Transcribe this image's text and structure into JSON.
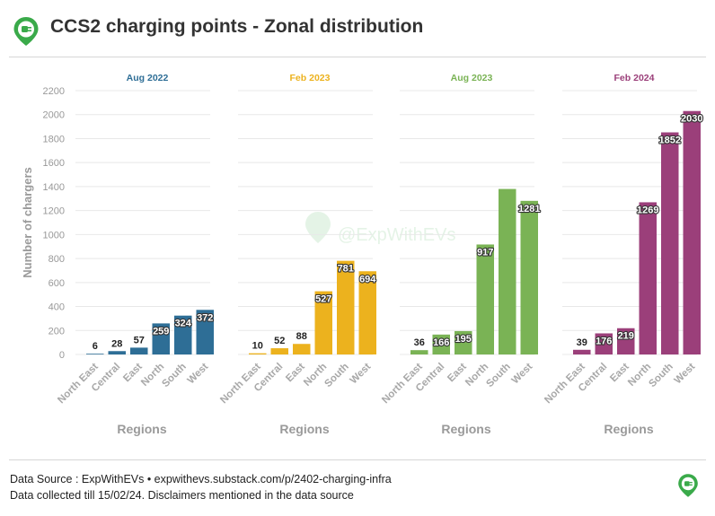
{
  "title": "CCS2 charging points - Zonal distribution",
  "watermark": "@ExpWithEVs",
  "footer": {
    "line1": "Data Source : ExpWithEVs • expwithevs.substack.com/p/2402-charging-infra",
    "line2": "Data collected till 15/02/24. Disclaimers mentioned in the data source"
  },
  "chart_data": {
    "type": "bar",
    "ylabel": "Number of chargers",
    "xlabel": "Regions",
    "ylim": [
      0,
      2200
    ],
    "yticks": [
      0,
      200,
      400,
      600,
      800,
      1000,
      1200,
      1400,
      1600,
      1800,
      2000,
      2200
    ],
    "grid": true,
    "categories": [
      "North East",
      "Central",
      "East",
      "North",
      "South",
      "West"
    ],
    "panels": [
      {
        "name": "Aug 2022",
        "color": "#2e6e96",
        "values": [
          6,
          28,
          57,
          259,
          324,
          372
        ],
        "labels": [
          "6",
          "28",
          "57",
          "259",
          "324",
          "372"
        ]
      },
      {
        "name": "Feb 2023",
        "color": "#ecb21e",
        "values": [
          10,
          52,
          88,
          527,
          781,
          694
        ],
        "labels": [
          "10",
          "52",
          "88",
          "527",
          "781",
          "694"
        ]
      },
      {
        "name": "Aug 2023",
        "color": "#7ab355",
        "values": [
          36,
          166,
          195,
          917,
          1380,
          1281
        ],
        "labels": [
          "36",
          "166",
          "195",
          "917",
          "",
          "1281"
        ]
      },
      {
        "name": "Feb 2024",
        "color": "#9b3f7a",
        "values": [
          39,
          176,
          219,
          1269,
          1852,
          2030
        ],
        "labels": [
          "39",
          "176",
          "219",
          "1269",
          "1852",
          "2030"
        ]
      }
    ]
  }
}
